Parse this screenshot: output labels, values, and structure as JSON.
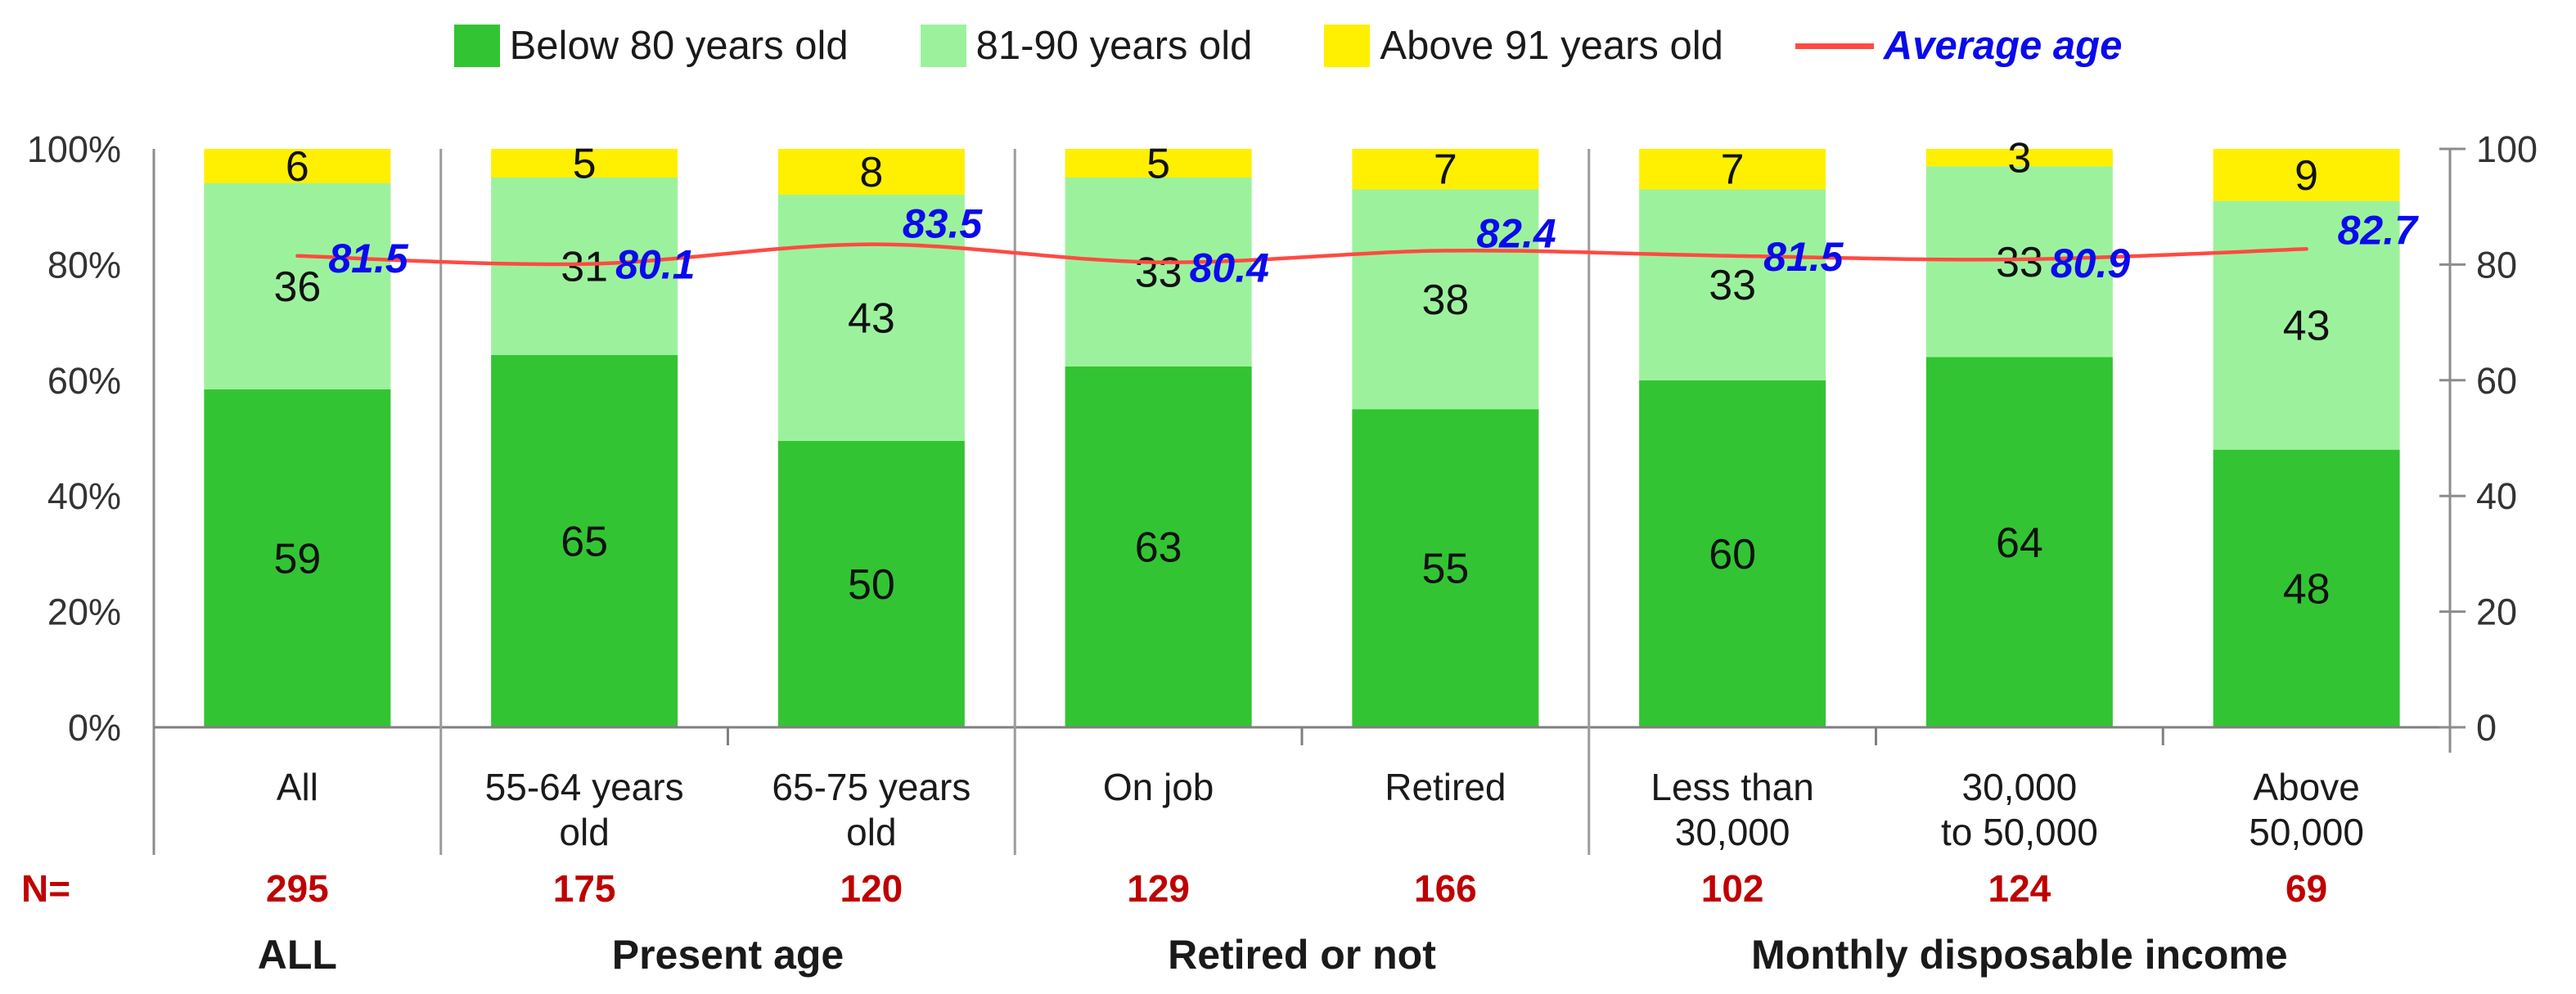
{
  "legend": {
    "items": [
      {
        "label": "Below 80 years old",
        "marker": "square",
        "color": "#33c433"
      },
      {
        "label": "81-90 years old",
        "marker": "square",
        "color": "#9cf29c"
      },
      {
        "label": "Above 91 years old",
        "marker": "square",
        "color": "#ffef00"
      },
      {
        "label": "Average age",
        "marker": "line",
        "color": "#ff4a42",
        "text_style": "avg"
      }
    ]
  },
  "chart_data": {
    "type": "bar",
    "subtype": "stacked-100-with-line",
    "title": "",
    "xlabel": "",
    "ylabel": "",
    "grid": false,
    "legend_position": "top",
    "categories": [
      {
        "lines": [
          "All"
        ]
      },
      {
        "lines": [
          "55-64 years",
          "old"
        ]
      },
      {
        "lines": [
          "65-75 years",
          "old"
        ]
      },
      {
        "lines": [
          "On job"
        ]
      },
      {
        "lines": [
          "Retired"
        ]
      },
      {
        "lines": [
          "Less than",
          "30,000"
        ]
      },
      {
        "lines": [
          "30,000",
          "to 50,000"
        ]
      },
      {
        "lines": [
          "Above",
          "50,000"
        ]
      }
    ],
    "series": [
      {
        "name": "Below 80 years old",
        "color": "#33c433",
        "label_color": "#111111",
        "values": [
          59,
          65,
          50,
          63,
          55,
          60,
          64,
          48
        ]
      },
      {
        "name": "81-90 years old",
        "color": "#9cf29c",
        "label_color": "#111111",
        "values": [
          36,
          31,
          43,
          33,
          38,
          33,
          33,
          43
        ]
      },
      {
        "name": "Above 91 years old",
        "color": "#ffef00",
        "label_color": "#111111",
        "values": [
          6,
          5,
          8,
          5,
          7,
          7,
          3,
          9
        ]
      }
    ],
    "line_series": {
      "name": "Average age",
      "color": "#ff4a42",
      "label_color": "#0a0aee",
      "values": [
        81.5,
        80.1,
        83.5,
        80.4,
        82.4,
        81.5,
        80.9,
        82.7
      ]
    },
    "left_axis": {
      "min": 0,
      "max": 100,
      "ticks": [
        "0%",
        "20%",
        "40%",
        "60%",
        "80%",
        "100%"
      ]
    },
    "right_axis": {
      "min": 0,
      "max": 100,
      "ticks": [
        "0",
        "20",
        "40",
        "60",
        "80",
        "100"
      ]
    },
    "n_row": {
      "label": "N=",
      "color": "#c00000",
      "values": [
        295,
        175,
        120,
        129,
        166,
        102,
        124,
        69
      ]
    },
    "groups": [
      {
        "label": "ALL",
        "span": [
          0,
          1
        ]
      },
      {
        "label": "Present age",
        "span": [
          1,
          3
        ]
      },
      {
        "label": "Retired or not",
        "span": [
          3,
          5
        ]
      },
      {
        "label": "Monthly disposable income",
        "span": [
          5,
          8
        ]
      }
    ],
    "colors": {
      "axis_line": "#8c8c8c",
      "separator": "#9b9b9b",
      "baseline": "#808080",
      "axis_text": "#333333",
      "bar_label_text": "#111111",
      "n_text": "#c00000",
      "group_text": "#1a1a1a"
    }
  }
}
